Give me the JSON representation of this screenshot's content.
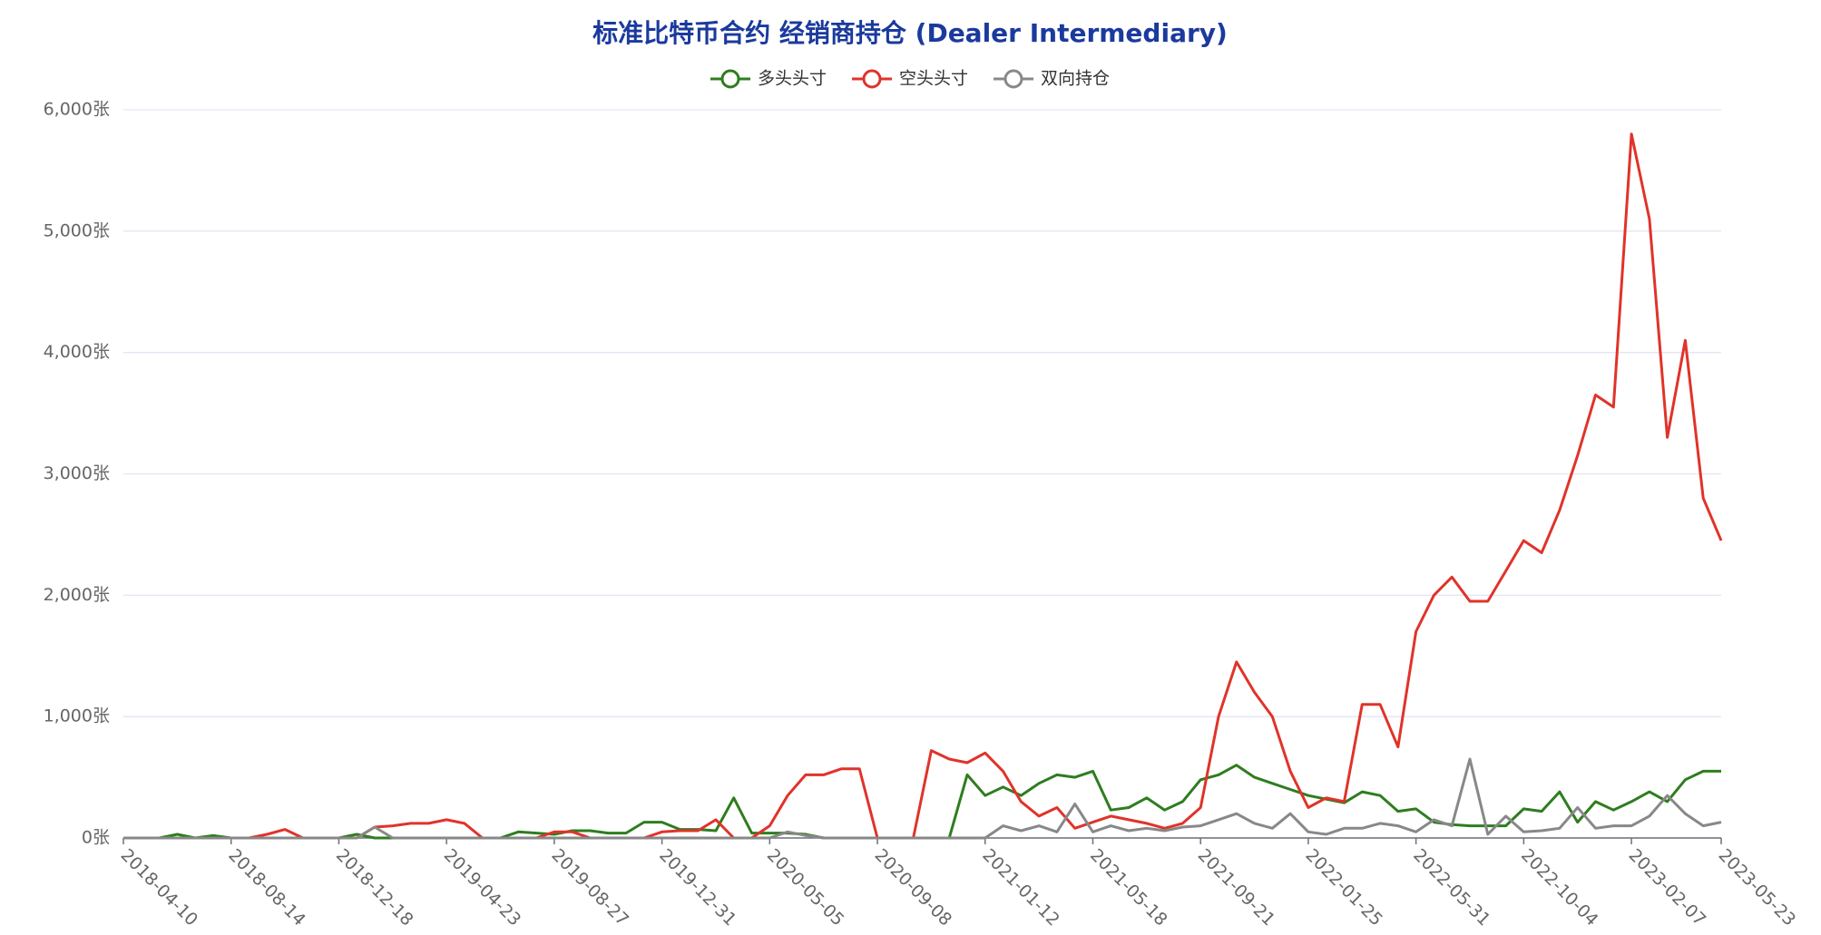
{
  "chart_data": {
    "type": "line",
    "title": "标准比特币合约 经销商持仓 (Dealer Intermediary)",
    "categories": [
      "2018-04-10",
      null,
      null,
      null,
      null,
      null,
      "2018-08-14",
      null,
      null,
      null,
      null,
      null,
      "2018-12-18",
      null,
      null,
      null,
      null,
      null,
      "2019-04-23",
      null,
      null,
      null,
      null,
      null,
      "2019-08-27",
      null,
      null,
      null,
      null,
      null,
      "2019-12-31",
      null,
      null,
      null,
      null,
      null,
      "2020-05-05",
      null,
      null,
      null,
      null,
      null,
      "2020-09-08",
      null,
      null,
      null,
      null,
      null,
      "2021-01-12",
      null,
      null,
      null,
      null,
      null,
      "2021-05-18",
      null,
      null,
      null,
      null,
      null,
      "2021-09-21",
      null,
      null,
      null,
      null,
      null,
      "2022-01-25",
      null,
      null,
      null,
      null,
      null,
      "2022-05-31",
      null,
      null,
      null,
      null,
      null,
      "2022-10-04",
      null,
      null,
      null,
      null,
      null,
      "2023-02-07",
      null,
      null,
      null,
      null,
      "2023-05-23"
    ],
    "series": [
      {
        "name": "多头头寸",
        "color": "#2e7d1f",
        "values": [
          0,
          0,
          0,
          30,
          0,
          20,
          0,
          0,
          0,
          0,
          0,
          0,
          0,
          30,
          0,
          0,
          0,
          0,
          0,
          0,
          0,
          0,
          50,
          40,
          30,
          60,
          60,
          40,
          40,
          130,
          130,
          70,
          70,
          60,
          330,
          40,
          40,
          40,
          30,
          0,
          0,
          0,
          0,
          0,
          0,
          0,
          0,
          520,
          350,
          420,
          350,
          450,
          520,
          500,
          550,
          230,
          250,
          330,
          230,
          300,
          480,
          520,
          600,
          500,
          450,
          400,
          350,
          320,
          290,
          380,
          350,
          220,
          240,
          130,
          110,
          100,
          100,
          100,
          240,
          220,
          380,
          130,
          300,
          230,
          300,
          380,
          300,
          480,
          550,
          550
        ]
      },
      {
        "name": "空头头寸",
        "color": "#e0332a",
        "values": [
          0,
          0,
          0,
          0,
          0,
          0,
          0,
          0,
          30,
          70,
          0,
          0,
          0,
          0,
          90,
          100,
          120,
          120,
          150,
          120,
          0,
          0,
          0,
          0,
          50,
          50,
          0,
          0,
          0,
          0,
          50,
          60,
          60,
          150,
          0,
          0,
          100,
          350,
          520,
          520,
          570,
          570,
          0,
          0,
          0,
          720,
          650,
          620,
          700,
          550,
          300,
          180,
          250,
          80,
          130,
          180,
          150,
          120,
          80,
          120,
          250,
          1000,
          1450,
          1200,
          1000,
          550,
          250,
          330,
          300,
          1100,
          1100,
          750,
          1700,
          2000,
          2150,
          1950,
          1950,
          2200,
          2450,
          2350,
          2700,
          3150,
          3650,
          3550,
          5800,
          5100,
          3300,
          4100,
          2800,
          2450
        ]
      },
      {
        "name": "双向持仓",
        "color": "#888888",
        "values": [
          0,
          0,
          0,
          0,
          0,
          0,
          0,
          0,
          0,
          0,
          0,
          0,
          0,
          0,
          90,
          0,
          0,
          0,
          0,
          0,
          0,
          0,
          0,
          0,
          0,
          0,
          0,
          0,
          0,
          0,
          0,
          0,
          0,
          0,
          0,
          0,
          0,
          50,
          20,
          0,
          0,
          0,
          0,
          0,
          0,
          0,
          0,
          0,
          0,
          100,
          60,
          100,
          50,
          280,
          50,
          100,
          60,
          80,
          60,
          90,
          100,
          150,
          200,
          120,
          80,
          200,
          50,
          30,
          80,
          80,
          120,
          100,
          50,
          150,
          100,
          650,
          30,
          180,
          50,
          60,
          80,
          250,
          80,
          100,
          100,
          180,
          350,
          200,
          100,
          130
        ]
      }
    ],
    "ylim": [
      0,
      6000
    ],
    "yticks": [
      {
        "value": 0,
        "label": "0张"
      },
      {
        "value": 1000,
        "label": "1,000张"
      },
      {
        "value": 2000,
        "label": "2,000张"
      },
      {
        "value": 3000,
        "label": "3,000张"
      },
      {
        "value": 4000,
        "label": "4,000张"
      },
      {
        "value": 5000,
        "label": "5,000张"
      },
      {
        "value": 6000,
        "label": "6,000张"
      }
    ],
    "grid": true
  }
}
